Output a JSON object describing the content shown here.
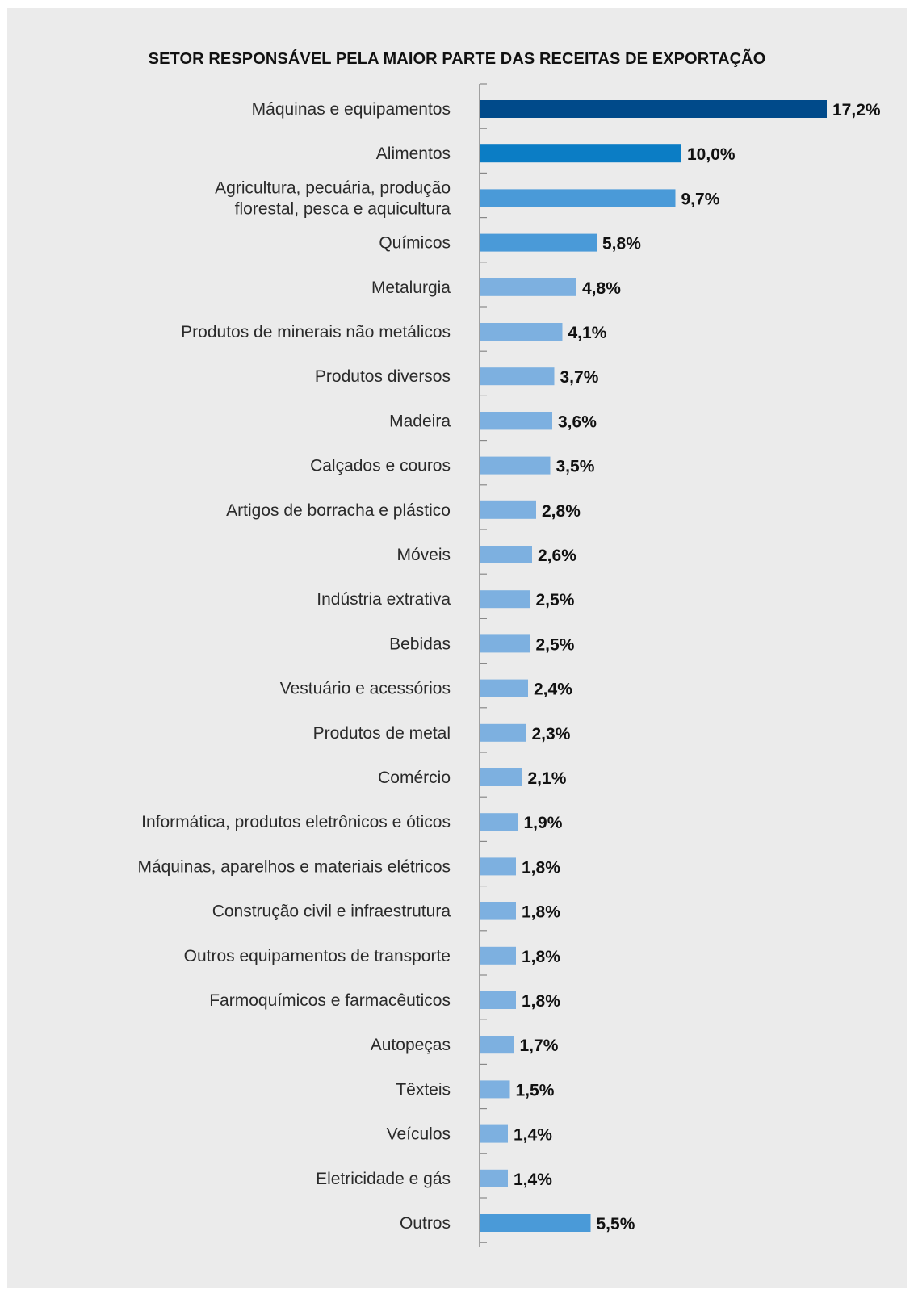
{
  "chart_data": {
    "type": "bar",
    "orientation": "horizontal",
    "title": "SETOR RESPONSÁVEL PELA MAIOR PARTE DAS RECEITAS DE EXPORTAÇÃO",
    "xlabel": "",
    "ylabel": "",
    "unit": "%",
    "xlim": [
      0,
      17.2
    ],
    "grid": false,
    "categories": [
      [
        "Máquinas e equipamentos"
      ],
      [
        "Alimentos"
      ],
      [
        "Agricultura, pecuária, produção",
        "florestal, pesca e aquicultura"
      ],
      [
        "Químicos"
      ],
      [
        "Metalurgia"
      ],
      [
        "Produtos de minerais não metálicos"
      ],
      [
        "Produtos diversos"
      ],
      [
        "Madeira"
      ],
      [
        "Calçados e couros"
      ],
      [
        "Artigos de borracha e plástico"
      ],
      [
        "Móveis"
      ],
      [
        "Indústria extrativa"
      ],
      [
        "Bebidas"
      ],
      [
        "Vestuário e acessórios"
      ],
      [
        "Produtos de metal"
      ],
      [
        "Comércio"
      ],
      [
        "Informática, produtos eletrônicos e óticos"
      ],
      [
        "Máquinas, aparelhos e materiais elétricos"
      ],
      [
        "Construção civil e infraestrutura"
      ],
      [
        "Outros equipamentos de transporte"
      ],
      [
        "Farmoquímicos e farmacêuticos"
      ],
      [
        "Autopeças"
      ],
      [
        "Têxteis"
      ],
      [
        "Veículos"
      ],
      [
        "Eletricidade e gás"
      ],
      [
        "Outros"
      ]
    ],
    "values": [
      17.2,
      10.0,
      9.7,
      5.8,
      4.8,
      4.1,
      3.7,
      3.6,
      3.5,
      2.8,
      2.6,
      2.5,
      2.5,
      2.4,
      2.3,
      2.1,
      1.9,
      1.8,
      1.8,
      1.8,
      1.8,
      1.7,
      1.5,
      1.4,
      1.4,
      5.5
    ],
    "value_labels": [
      "17,2%",
      "10,0%",
      "9,7%",
      "5,8%",
      "4,8%",
      "4,1%",
      "3,7%",
      "3,6%",
      "3,5%",
      "2,8%",
      "2,6%",
      "2,5%",
      "2,5%",
      "2,4%",
      "2,3%",
      "2,1%",
      "1,9%",
      "1,8%",
      "1,8%",
      "1,8%",
      "1,8%",
      "1,7%",
      "1,5%",
      "1,4%",
      "1,4%",
      "5,5%"
    ],
    "bar_colors": [
      "#004a8a",
      "#0b7dc5",
      "#4a9ad8",
      "#4a9ad8",
      "#7db0e0",
      "#7db0e0",
      "#7db0e0",
      "#7db0e0",
      "#7db0e0",
      "#7db0e0",
      "#7db0e0",
      "#7db0e0",
      "#7db0e0",
      "#7db0e0",
      "#7db0e0",
      "#7db0e0",
      "#7db0e0",
      "#7db0e0",
      "#7db0e0",
      "#7db0e0",
      "#7db0e0",
      "#7db0e0",
      "#7db0e0",
      "#7db0e0",
      "#7db0e0",
      "#4a9ad8"
    ]
  },
  "colors": {
    "background": "#ebebeb",
    "axis": "#888888"
  }
}
